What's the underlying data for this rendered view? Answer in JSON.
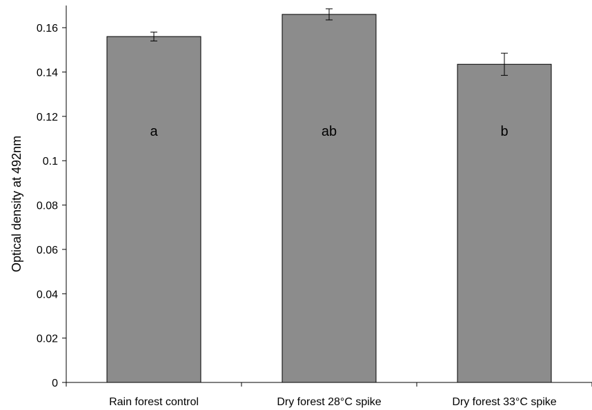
{
  "chart_data": {
    "type": "bar",
    "title": "",
    "xlabel": "",
    "ylabel": "Optical density at 492nm",
    "ylim": [
      0,
      0.17
    ],
    "yticks": [
      "0",
      "0.02",
      "0.04",
      "0.06",
      "0.08",
      "0.1",
      "0.12",
      "0.14",
      "0.16"
    ],
    "categories": [
      "Rain forest control",
      "Dry forest 28°C spike",
      "Dry forest 33°C spike"
    ],
    "values": [
      0.156,
      0.166,
      0.1435
    ],
    "errors": [
      0.002,
      0.0025,
      0.005
    ],
    "annotations": [
      "a",
      "ab",
      "b"
    ],
    "bar_color": "#8c8c8c",
    "bar_edge_color": "#000000",
    "grid": false,
    "legend": "none"
  }
}
